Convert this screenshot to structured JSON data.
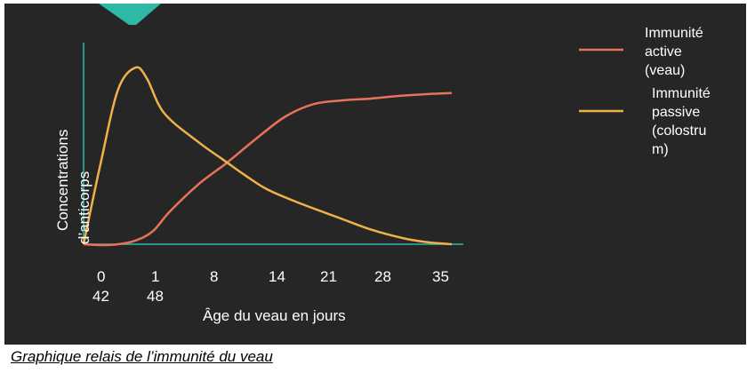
{
  "caption": "Graphique relais de l’immunité du veau",
  "chart_data": {
    "type": "line",
    "xlabel": "Âge du veau en jours",
    "ylabel_lines": [
      "Concentrations",
      "d’anticorps"
    ],
    "x_ticks": [
      {
        "line1": "0",
        "line2": "42"
      },
      {
        "line1": "1",
        "line2": "48"
      },
      {
        "line1": "8",
        "line2": ""
      },
      {
        "line1": "14",
        "line2": ""
      },
      {
        "line1": "21",
        "line2": ""
      },
      {
        "line1": "28",
        "line2": ""
      },
      {
        "line1": "35",
        "line2": ""
      }
    ],
    "x_range": [
      0,
      6.6
    ],
    "y_range": [
      0,
      100
    ],
    "legend_position": "right",
    "series": [
      {
        "name_lines": [
          "Immunité",
          "active",
          "(veau)"
        ],
        "color": "#e8735a",
        "points": [
          [
            0,
            0
          ],
          [
            0.3,
            -0.5
          ],
          [
            0.6,
            0
          ],
          [
            0.9,
            2
          ],
          [
            1.2,
            7
          ],
          [
            1.5,
            18
          ],
          [
            2,
            33
          ],
          [
            2.5,
            45
          ],
          [
            3,
            58
          ],
          [
            3.5,
            70
          ],
          [
            4,
            77
          ],
          [
            4.5,
            79
          ],
          [
            5,
            80
          ],
          [
            5.5,
            81.5
          ],
          [
            6,
            82.5
          ],
          [
            6.4,
            83
          ]
        ]
      },
      {
        "name_lines": [
          "Immunité",
          "passive",
          "(colostru",
          "m)"
        ],
        "color": "#f0b14a",
        "points": [
          [
            0,
            0
          ],
          [
            0.3,
            45
          ],
          [
            0.6,
            85
          ],
          [
            0.9,
            97
          ],
          [
            1.1,
            91
          ],
          [
            1.4,
            72
          ],
          [
            2,
            56
          ],
          [
            2.4,
            47
          ],
          [
            2.8,
            38
          ],
          [
            3.2,
            30
          ],
          [
            3.8,
            22
          ],
          [
            4.4,
            15
          ],
          [
            5,
            8
          ],
          [
            5.6,
            3
          ],
          [
            6,
            1
          ],
          [
            6.4,
            0
          ]
        ]
      }
    ]
  }
}
